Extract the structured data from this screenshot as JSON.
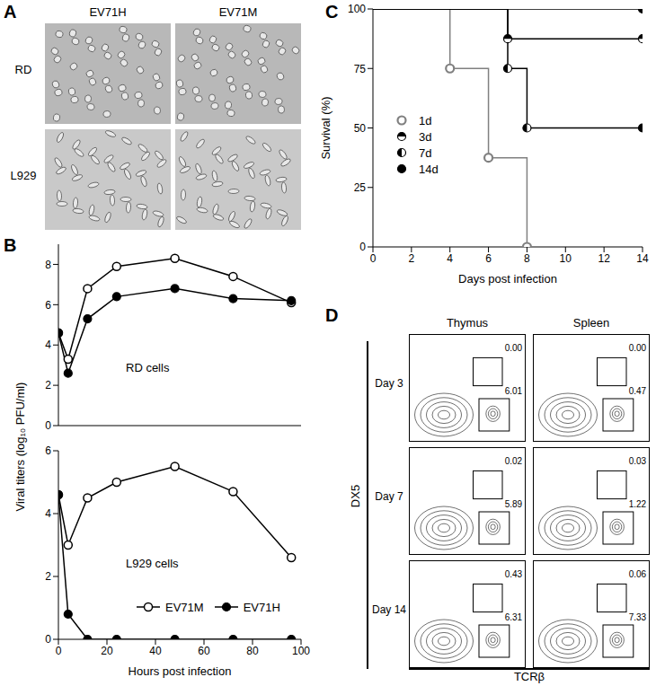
{
  "panel_labels": [
    "A",
    "B",
    "C",
    "D"
  ],
  "panel_a": {
    "columns": [
      "EV71H",
      "EV71M"
    ],
    "rows": [
      "RD",
      "L929"
    ]
  },
  "chart_data": [
    {
      "type": "line",
      "annotation": "RD cells",
      "y_label": "Viral titers (log₁₀ PFU/ml)",
      "x": [
        0,
        4,
        12,
        24,
        48,
        72,
        96
      ],
      "series": [
        {
          "name": "EV71M",
          "color": "#000000",
          "marker": "open_circle",
          "values": [
            4.6,
            3.3,
            6.8,
            7.9,
            8.3,
            7.4,
            6.1
          ]
        },
        {
          "name": "EV71H",
          "color": "#000000",
          "marker": "filled_circle",
          "values": [
            4.6,
            2.6,
            5.3,
            6.4,
            6.8,
            6.3,
            6.2
          ]
        }
      ],
      "xlim": [
        0,
        100
      ],
      "xticks": [
        0,
        20,
        40,
        60,
        80,
        100
      ],
      "ylim": [
        0,
        9
      ],
      "yticks": [
        0,
        2,
        4,
        6,
        8
      ],
      "tick_labels": "y"
    },
    {
      "type": "line",
      "annotation": "L929 cells",
      "x_label": "Hours post infection",
      "legend": "lower center",
      "x": [
        0,
        4,
        12,
        24,
        48,
        72,
        96
      ],
      "series": [
        {
          "name": "EV71M",
          "color": "#000000",
          "marker": "open_circle",
          "values": [
            4.6,
            3.0,
            4.5,
            5.0,
            5.5,
            4.7,
            2.6
          ]
        },
        {
          "name": "EV71H",
          "color": "#000000",
          "marker": "filled_circle",
          "values": [
            4.6,
            0.8,
            0,
            0,
            0,
            0,
            0
          ]
        }
      ],
      "xlim": [
        0,
        100
      ],
      "xticks": [
        0,
        20,
        40,
        60,
        80,
        100
      ],
      "ylim": [
        0,
        6
      ],
      "yticks": [
        0,
        2,
        4,
        6
      ]
    },
    {
      "type": "line",
      "line_style": "step",
      "x_label": "Days post infection",
      "y_label": "Survival (%)",
      "legend": "left",
      "series": [
        {
          "name": "1d",
          "color": "#808080",
          "marker": "open_circle",
          "x": [
            0,
            4,
            6,
            8
          ],
          "values": [
            100,
            75,
            37.5,
            0
          ]
        },
        {
          "name": "3d",
          "color": "#000000",
          "marker": "half_top",
          "x": [
            0,
            7,
            14
          ],
          "values": [
            100,
            87.5,
            87.5
          ]
        },
        {
          "name": "7d",
          "color": "#000000",
          "marker": "half_left",
          "x": [
            0,
            7,
            8,
            14
          ],
          "values": [
            100,
            75,
            50,
            50
          ]
        },
        {
          "name": "14d",
          "color": "#000000",
          "marker": "filled_circle",
          "x": [
            0,
            14
          ],
          "values": [
            100,
            100
          ]
        }
      ],
      "xlim": [
        0,
        14
      ],
      "xticks": [
        0,
        2,
        4,
        6,
        8,
        10,
        12,
        14
      ],
      "ylim": [
        0,
        100
      ],
      "yticks": [
        0,
        25,
        50,
        75,
        100
      ]
    }
  ],
  "panel_d": {
    "columns": [
      "Thymus",
      "Spleen"
    ],
    "rows": [
      {
        "label": "Day 3",
        "gates": [
          [
            "0.00",
            "6.01"
          ],
          [
            "0.00",
            "0.47"
          ]
        ]
      },
      {
        "label": "Day 7",
        "gates": [
          [
            "0.02",
            "5.89"
          ],
          [
            "0.03",
            "1.22"
          ]
        ]
      },
      {
        "label": "Day 14",
        "gates": [
          [
            "0.43",
            "6.31"
          ],
          [
            "0.06",
            "7.33"
          ]
        ]
      }
    ],
    "y_label": "DX5",
    "x_label": "TCRβ"
  }
}
